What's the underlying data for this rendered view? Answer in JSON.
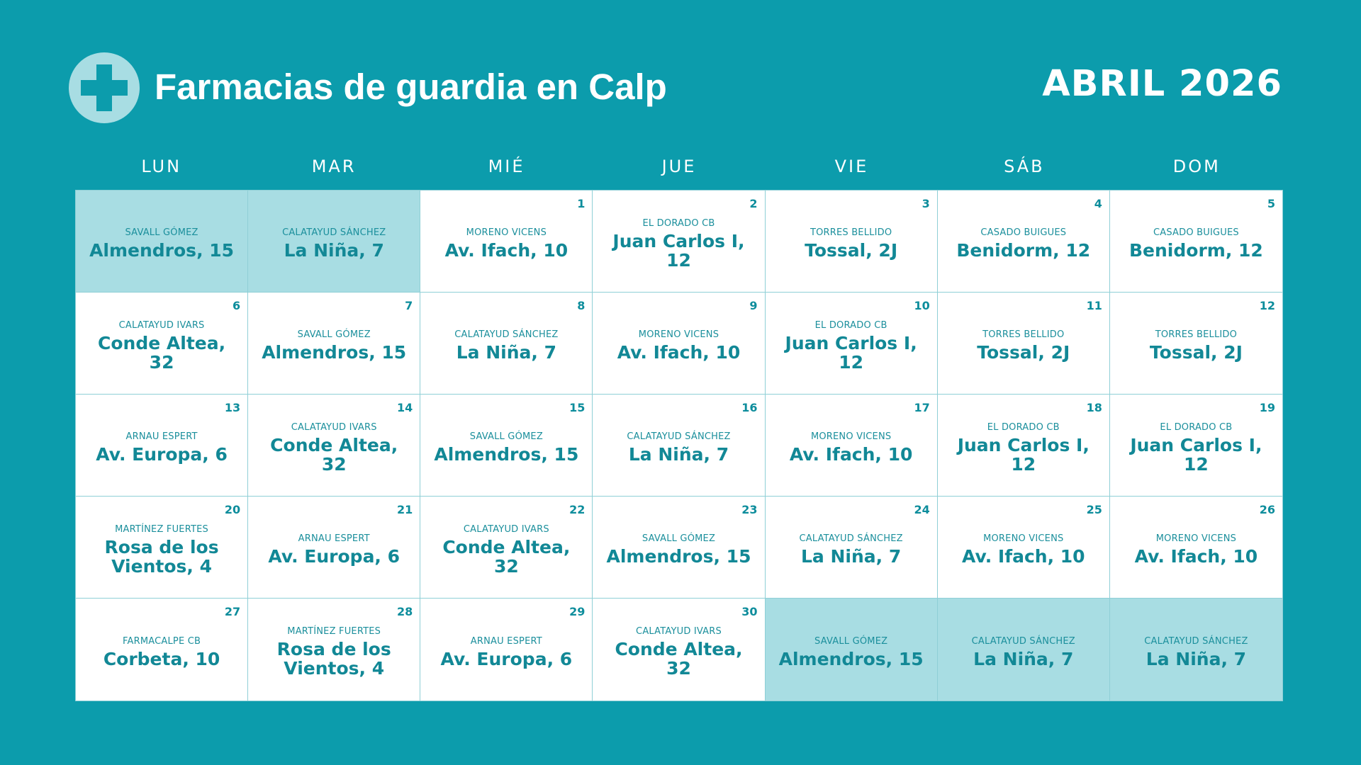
{
  "header": {
    "title": "Farmacias de guardia en Calp",
    "month": "ABRIL 2026",
    "logo_icon": "pharmacy-cross-icon"
  },
  "colors": {
    "background": "#0c9cac",
    "cell": "#ffffff",
    "other_month_cell": "#a8dde3",
    "text_accent": "#128896"
  },
  "weekdays": [
    "LUN",
    "MAR",
    "MIÉ",
    "JUE",
    "VIE",
    "SÁB",
    "DOM"
  ],
  "days": [
    {
      "day": "",
      "pharmacy": "SAVALL GÓMEZ",
      "address": "Almendros, 15",
      "other_month": true
    },
    {
      "day": "",
      "pharmacy": "CALATAYUD SÁNCHEZ",
      "address": "La Niña, 7",
      "other_month": true
    },
    {
      "day": "1",
      "pharmacy": "MORENO VICENS",
      "address": "Av. Ifach, 10",
      "other_month": false
    },
    {
      "day": "2",
      "pharmacy": "EL DORADO CB",
      "address": "Juan Carlos I, 12",
      "other_month": false
    },
    {
      "day": "3",
      "pharmacy": "TORRES BELLIDO",
      "address": "Tossal, 2J",
      "other_month": false
    },
    {
      "day": "4",
      "pharmacy": "CASADO BUIGUES",
      "address": "Benidorm, 12",
      "other_month": false
    },
    {
      "day": "5",
      "pharmacy": "CASADO BUIGUES",
      "address": "Benidorm, 12",
      "other_month": false
    },
    {
      "day": "6",
      "pharmacy": "CALATAYUD IVARS",
      "address": "Conde Altea, 32",
      "other_month": false
    },
    {
      "day": "7",
      "pharmacy": "SAVALL GÓMEZ",
      "address": "Almendros, 15",
      "other_month": false
    },
    {
      "day": "8",
      "pharmacy": "CALATAYUD SÁNCHEZ",
      "address": "La Niña, 7",
      "other_month": false
    },
    {
      "day": "9",
      "pharmacy": "MORENO VICENS",
      "address": "Av. Ifach, 10",
      "other_month": false
    },
    {
      "day": "10",
      "pharmacy": "EL DORADO CB",
      "address": "Juan Carlos I, 12",
      "other_month": false
    },
    {
      "day": "11",
      "pharmacy": "TORRES BELLIDO",
      "address": "Tossal, 2J",
      "other_month": false
    },
    {
      "day": "12",
      "pharmacy": "TORRES BELLIDO",
      "address": "Tossal, 2J",
      "other_month": false
    },
    {
      "day": "13",
      "pharmacy": "ARNAU ESPERT",
      "address": "Av. Europa, 6",
      "other_month": false
    },
    {
      "day": "14",
      "pharmacy": "CALATAYUD IVARS",
      "address": "Conde Altea, 32",
      "other_month": false
    },
    {
      "day": "15",
      "pharmacy": "SAVALL GÓMEZ",
      "address": "Almendros, 15",
      "other_month": false
    },
    {
      "day": "16",
      "pharmacy": "CALATAYUD SÁNCHEZ",
      "address": "La Niña, 7",
      "other_month": false
    },
    {
      "day": "17",
      "pharmacy": "MORENO VICENS",
      "address": "Av. Ifach, 10",
      "other_month": false
    },
    {
      "day": "18",
      "pharmacy": "EL DORADO CB",
      "address": "Juan Carlos I, 12",
      "other_month": false
    },
    {
      "day": "19",
      "pharmacy": "EL DORADO CB",
      "address": "Juan Carlos I, 12",
      "other_month": false
    },
    {
      "day": "20",
      "pharmacy": "MARTÍNEZ FUERTES",
      "address": "Rosa de los Vientos, 4",
      "other_month": false
    },
    {
      "day": "21",
      "pharmacy": "ARNAU ESPERT",
      "address": "Av. Europa, 6",
      "other_month": false
    },
    {
      "day": "22",
      "pharmacy": "CALATAYUD IVARS",
      "address": "Conde Altea, 32",
      "other_month": false
    },
    {
      "day": "23",
      "pharmacy": "SAVALL GÓMEZ",
      "address": "Almendros, 15",
      "other_month": false
    },
    {
      "day": "24",
      "pharmacy": "CALATAYUD SÁNCHEZ",
      "address": "La Niña, 7",
      "other_month": false
    },
    {
      "day": "25",
      "pharmacy": "MORENO VICENS",
      "address": "Av. Ifach, 10",
      "other_month": false
    },
    {
      "day": "26",
      "pharmacy": "MORENO VICENS",
      "address": "Av. Ifach, 10",
      "other_month": false
    },
    {
      "day": "27",
      "pharmacy": "FARMACALPE CB",
      "address": "Corbeta, 10",
      "other_month": false
    },
    {
      "day": "28",
      "pharmacy": "MARTÍNEZ FUERTES",
      "address": "Rosa de los Vientos, 4",
      "other_month": false
    },
    {
      "day": "29",
      "pharmacy": "ARNAU ESPERT",
      "address": "Av. Europa, 6",
      "other_month": false
    },
    {
      "day": "30",
      "pharmacy": "CALATAYUD IVARS",
      "address": "Conde Altea, 32",
      "other_month": false
    },
    {
      "day": "",
      "pharmacy": "SAVALL GÓMEZ",
      "address": "Almendros, 15",
      "other_month": true
    },
    {
      "day": "",
      "pharmacy": "CALATAYUD SÁNCHEZ",
      "address": "La Niña, 7",
      "other_month": true
    },
    {
      "day": "",
      "pharmacy": "CALATAYUD SÁNCHEZ",
      "address": "La Niña, 7",
      "other_month": true
    }
  ]
}
